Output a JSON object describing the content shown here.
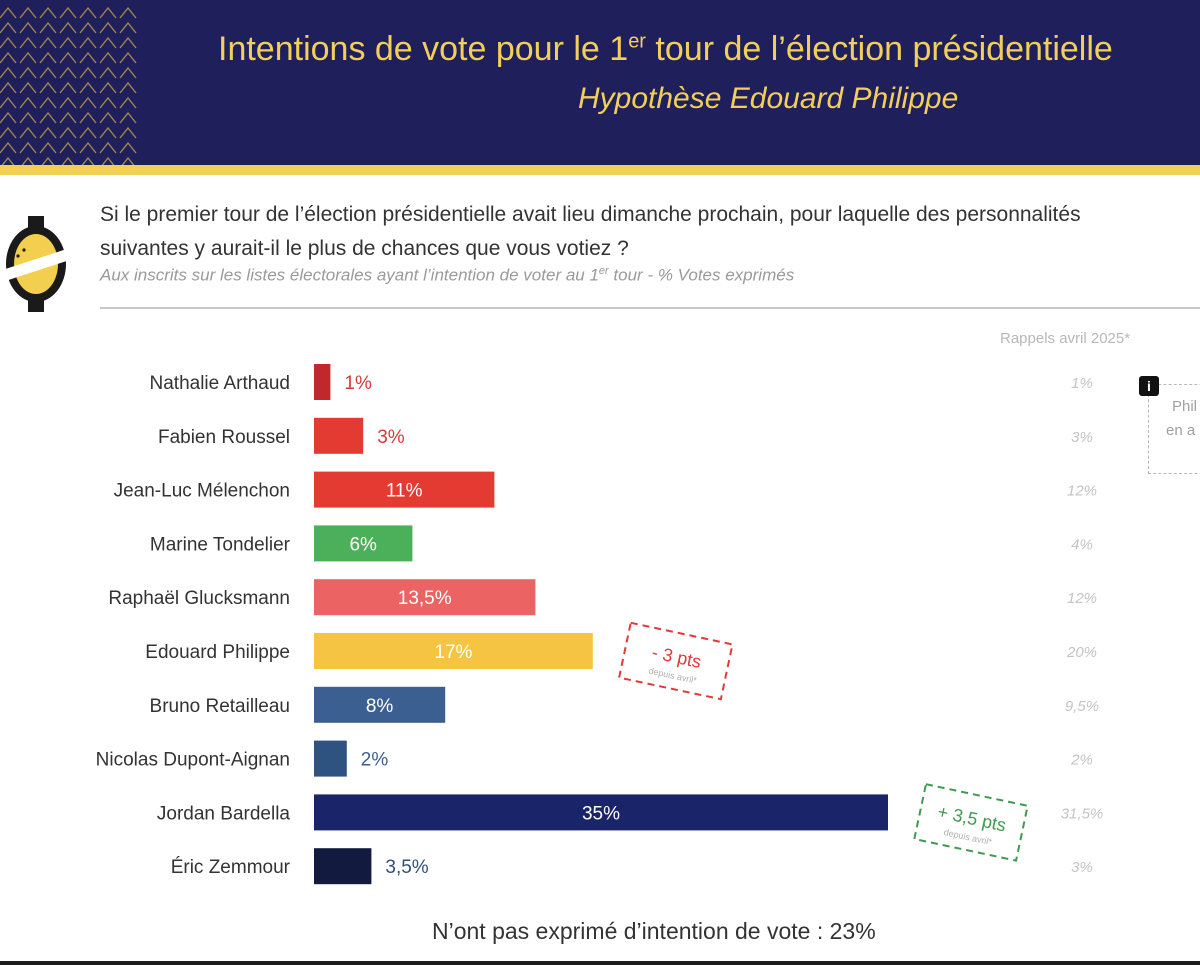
{
  "header": {
    "title": "Intentions de vote pour le 1",
    "title_sup": "er",
    "title_rest": " tour de l’élection présidentielle",
    "subtitle": "Hypothèse Edouard Philippe"
  },
  "question": {
    "line1": "Si le premier tour de l’élection présidentielle avait lieu dimanche prochain, pour laquelle des personnalités",
    "line2": "suivantes y aurait-il le plus de chances que vous votiez ?",
    "base_pre": "Aux inscrits sur les listes électorales ayant l’intention de voter au 1",
    "base_sup": "er",
    "base_post": " tour  - % Votes exprimés"
  },
  "rappels_title": "Rappels avril 2025*",
  "side_note": {
    "line1": "Phil",
    "line2": "en a"
  },
  "footer_note": "N’ont pas exprimé d’intention de vote : 23%",
  "colors": {
    "header_bg": "#1f1f5c",
    "header_accent": "#f2d058",
    "annotation_negative": "#e03a3a",
    "annotation_positive": "#3d9a4e"
  },
  "chart_data": {
    "type": "bar",
    "orientation": "horizontal",
    "xlim": [
      0,
      35
    ],
    "categories": [
      "Nathalie Arthaud",
      "Fabien Roussel",
      "Jean-Luc Mélenchon",
      "Marine Tondelier",
      "Raphaël Glucksmann",
      "Edouard Philippe",
      "Bruno Retailleau",
      "Nicolas Dupont-Aignan",
      "Jordan Bardella",
      "Éric Zemmour"
    ],
    "values": [
      1,
      3,
      11,
      6,
      13.5,
      17,
      8,
      2,
      35,
      3.5
    ],
    "value_labels": [
      "1%",
      "3%",
      "11%",
      "6%",
      "13,5%",
      "17%",
      "8%",
      "2%",
      "35%",
      "3,5%"
    ],
    "bar_colors": [
      "#c0282b",
      "#e33b32",
      "#e33b32",
      "#4caf5a",
      "#eb6463",
      "#f5c542",
      "#3c5f92",
      "#2f5380",
      "#1a2469",
      "#131a3f"
    ],
    "label_colors": [
      "#d33a3a",
      "#d33a3a",
      "#ffffff",
      "#ffffff",
      "#ffffff",
      "#ffffff",
      "#ffffff",
      "#3c5f92",
      "#ffffff",
      "#2f4f7a"
    ],
    "label_inside": [
      false,
      false,
      true,
      true,
      true,
      true,
      true,
      false,
      true,
      false
    ],
    "previous": {
      "title": "Rappels avril 2025*",
      "values": [
        1,
        3,
        12,
        4,
        12,
        20,
        9.5,
        2,
        31.5,
        3
      ],
      "labels": [
        "1%",
        "3%",
        "12%",
        "4%",
        "12%",
        "20%",
        "9,5%",
        "2%",
        "31,5%",
        "3%"
      ]
    },
    "annotations": [
      {
        "category": "Edouard Philippe",
        "text": "- 3 pts",
        "subtext": "depuis avril*",
        "color": "#e03a3a"
      },
      {
        "category": "Jordan Bardella",
        "text": "+ 3,5 pts",
        "subtext": "depuis avril*",
        "color": "#3d9a4e"
      }
    ]
  }
}
